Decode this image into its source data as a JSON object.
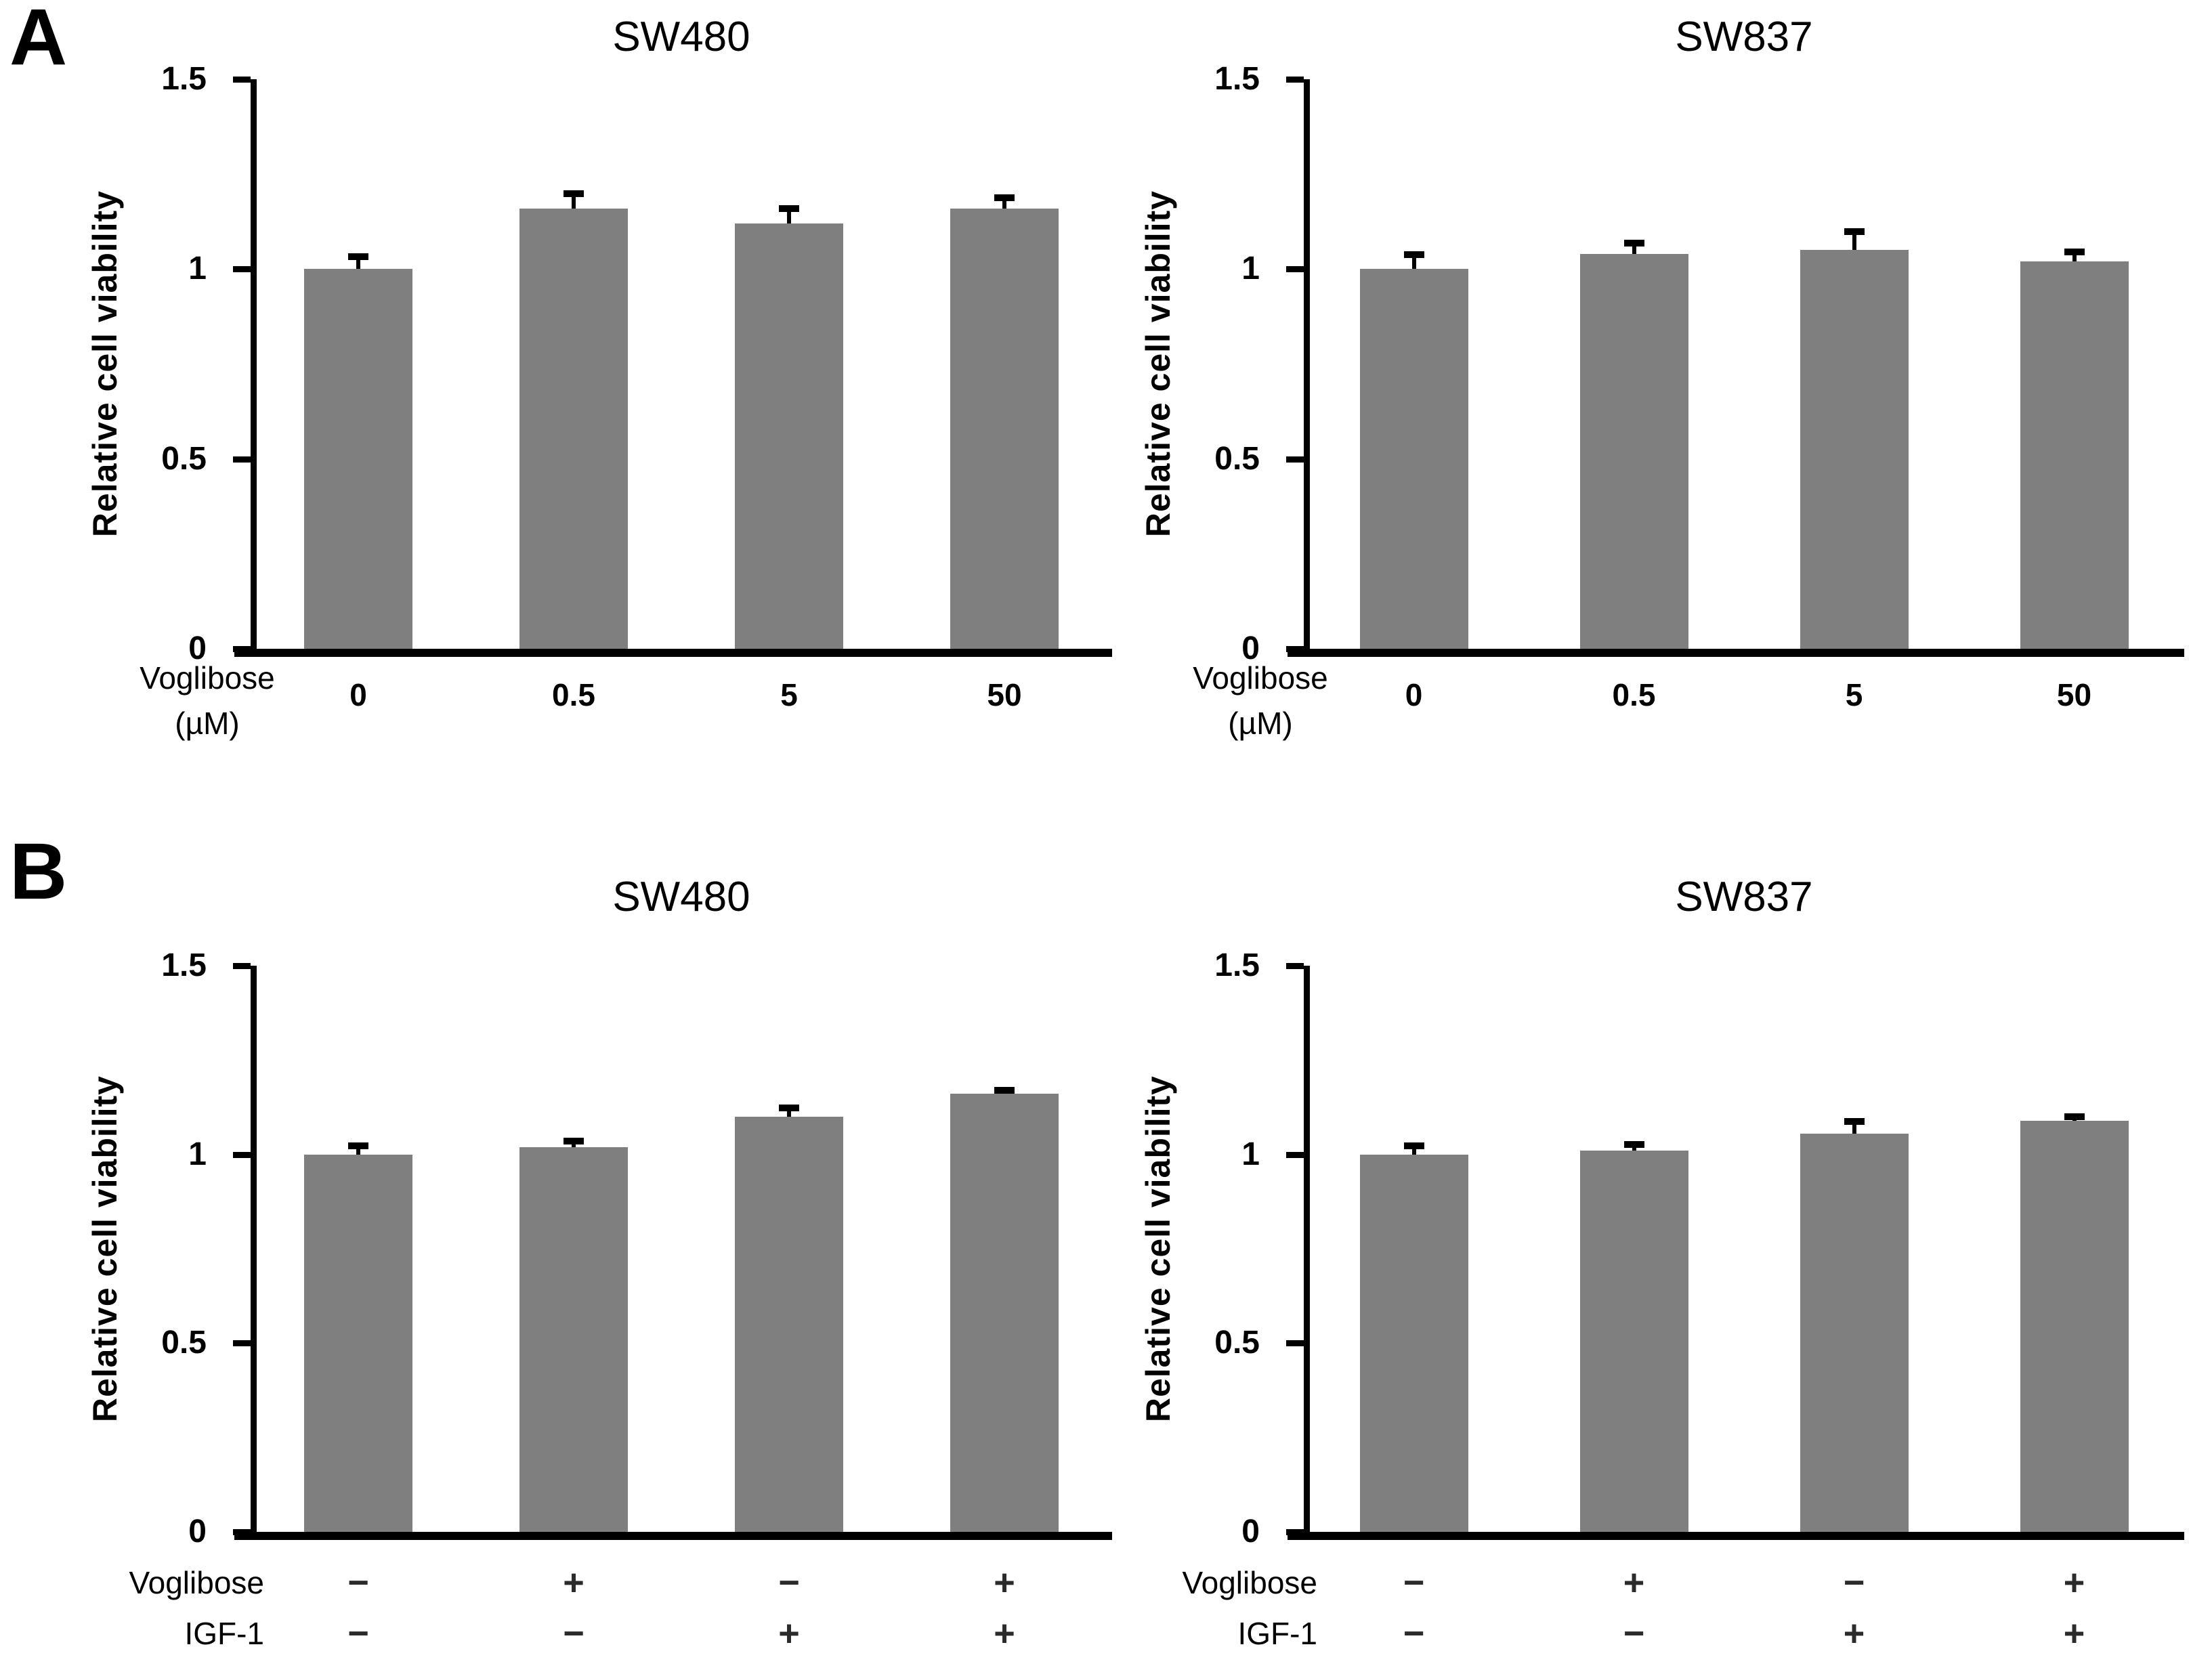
{
  "panels": [
    {
      "label": "A"
    },
    {
      "label": "B"
    }
  ],
  "colors": {
    "bar": "#7f7f7f",
    "axis": "#000000",
    "text": "#000000"
  },
  "chart_data": [
    {
      "panel": "A",
      "type": "bar",
      "title": "SW480",
      "ylabel": "Relative cell viability",
      "ylim": [
        0,
        1.5
      ],
      "yticks": [
        0,
        0.5,
        1,
        1.5
      ],
      "ytick_labels": [
        "0",
        "0.5",
        "1",
        "1.5"
      ],
      "x_axis_label_lines": [
        "Voglibose",
        "(µM)"
      ],
      "categories": [
        "0",
        "0.5",
        "5",
        "50"
      ],
      "values": [
        1.0,
        1.16,
        1.12,
        1.16
      ],
      "errors": [
        0.03,
        0.035,
        0.035,
        0.025
      ],
      "grid": false,
      "legend": "none"
    },
    {
      "panel": "A",
      "type": "bar",
      "title": "SW837",
      "ylabel": "Relative cell viability",
      "ylim": [
        0,
        1.5
      ],
      "yticks": [
        0,
        0.5,
        1,
        1.5
      ],
      "ytick_labels": [
        "0",
        "0.5",
        "1",
        "1.5"
      ],
      "x_axis_label_lines": [
        "Voglibose",
        "(µM)"
      ],
      "categories": [
        "0",
        "0.5",
        "5",
        "50"
      ],
      "values": [
        1.0,
        1.04,
        1.05,
        1.02
      ],
      "errors": [
        0.035,
        0.025,
        0.045,
        0.022
      ],
      "grid": false,
      "legend": "none"
    },
    {
      "panel": "B",
      "type": "bar",
      "title": "SW480",
      "ylabel": "Relative cell viability",
      "ylim": [
        0,
        1.5
      ],
      "yticks": [
        0,
        0.5,
        1,
        1.5
      ],
      "ytick_labels": [
        "0",
        "0.5",
        "1",
        "1.5"
      ],
      "condition_rows": [
        {
          "label": "Voglibose",
          "signs": [
            "−",
            "+",
            "−",
            "+"
          ]
        },
        {
          "label": "IGF-1",
          "signs": [
            "−",
            "−",
            "+",
            "+"
          ]
        }
      ],
      "values": [
        1.0,
        1.02,
        1.1,
        1.16
      ],
      "errors": [
        0.02,
        0.012,
        0.02,
        0.006
      ],
      "grid": false,
      "legend": "none"
    },
    {
      "panel": "B",
      "type": "bar",
      "title": "SW837",
      "ylabel": "Relative cell viability",
      "ylim": [
        0,
        1.5
      ],
      "yticks": [
        0,
        0.5,
        1,
        1.5
      ],
      "ytick_labels": [
        "0",
        "0.5",
        "1",
        "1.5"
      ],
      "condition_rows": [
        {
          "label": "Voglibose",
          "signs": [
            "−",
            "+",
            "−",
            "+"
          ]
        },
        {
          "label": "IGF-1",
          "signs": [
            "−",
            "−",
            "+",
            "+"
          ]
        }
      ],
      "values": [
        1.0,
        1.01,
        1.055,
        1.09
      ],
      "errors": [
        0.02,
        0.012,
        0.028,
        0.006
      ],
      "grid": false,
      "legend": "none"
    }
  ]
}
